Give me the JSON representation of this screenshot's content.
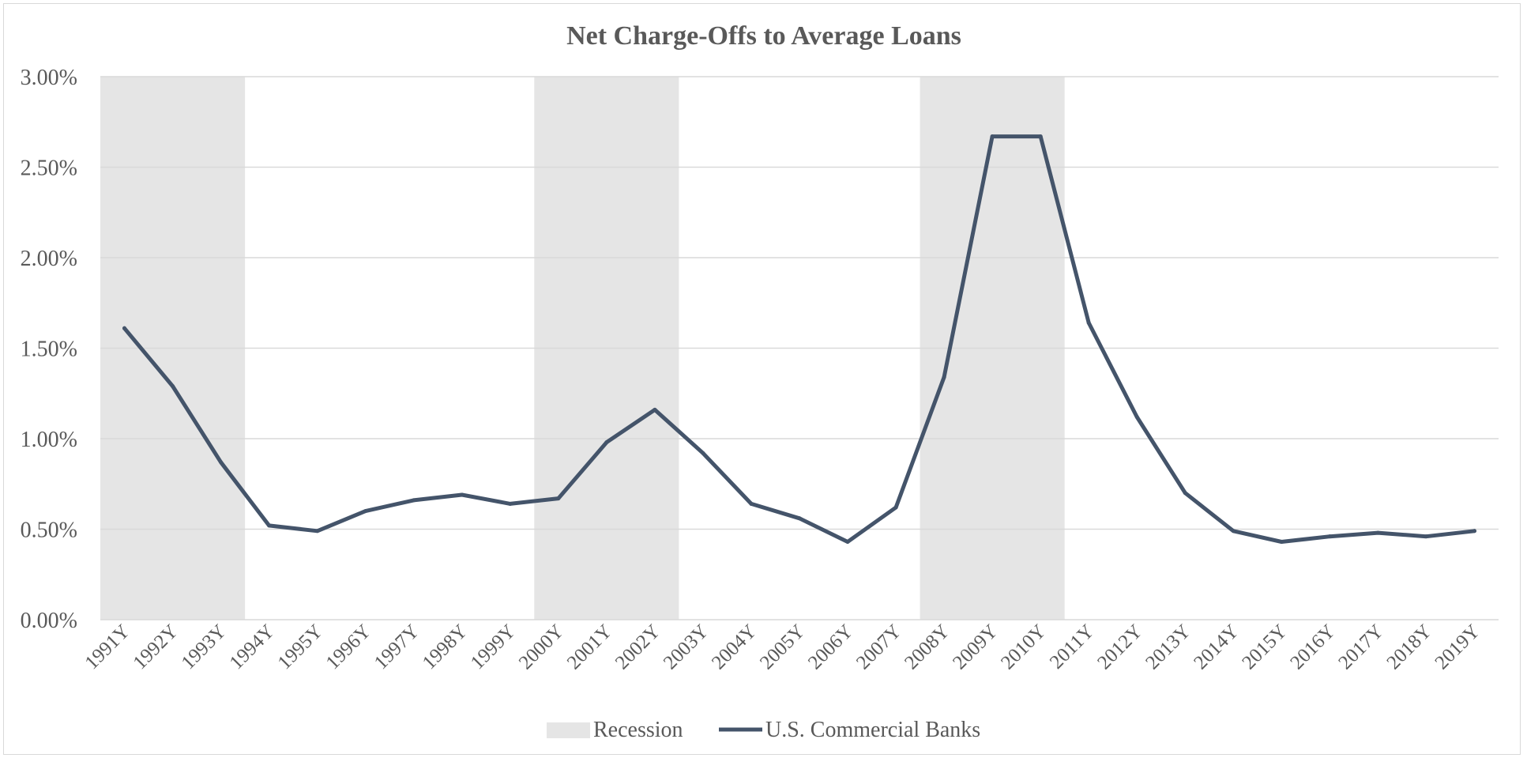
{
  "chart_data": {
    "type": "line",
    "title": "Net Charge-Offs to Average Loans",
    "xlabel": "",
    "ylabel": "",
    "ylim": [
      0,
      3.0
    ],
    "y_ticks": [
      "0.00%",
      "0.50%",
      "1.00%",
      "1.50%",
      "2.00%",
      "2.50%",
      "3.00%"
    ],
    "y_tick_values": [
      0,
      0.5,
      1.0,
      1.5,
      2.0,
      2.5,
      3.0
    ],
    "grid": "horizontal",
    "legend_position": "bottom",
    "categories": [
      "1991Y",
      "1992Y",
      "1993Y",
      "1994Y",
      "1995Y",
      "1996Y",
      "1997Y",
      "1998Y",
      "1999Y",
      "2000Y",
      "2001Y",
      "2002Y",
      "2003Y",
      "2004Y",
      "2005Y",
      "2006Y",
      "2007Y",
      "2008Y",
      "2009Y",
      "2010Y",
      "2011Y",
      "2012Y",
      "2013Y",
      "2014Y",
      "2015Y",
      "2016Y",
      "2017Y",
      "2018Y",
      "2019Y"
    ],
    "series": [
      {
        "name": "U.S. Commercial Banks",
        "color": "#44546a",
        "values": [
          1.61,
          1.29,
          0.87,
          0.52,
          0.49,
          0.6,
          0.66,
          0.69,
          0.64,
          0.67,
          0.98,
          1.16,
          0.92,
          0.64,
          0.56,
          0.43,
          0.62,
          1.34,
          2.67,
          2.67,
          1.64,
          1.12,
          0.7,
          0.49,
          0.43,
          0.46,
          0.48,
          0.46,
          0.49
        ]
      }
    ],
    "recession": {
      "name": "Recession",
      "color": "#e5e5e5",
      "periods": [
        [
          "1991Y",
          "1993Y"
        ],
        [
          "2000Y",
          "2002Y"
        ],
        [
          "2008Y",
          "2010Y"
        ]
      ]
    }
  }
}
